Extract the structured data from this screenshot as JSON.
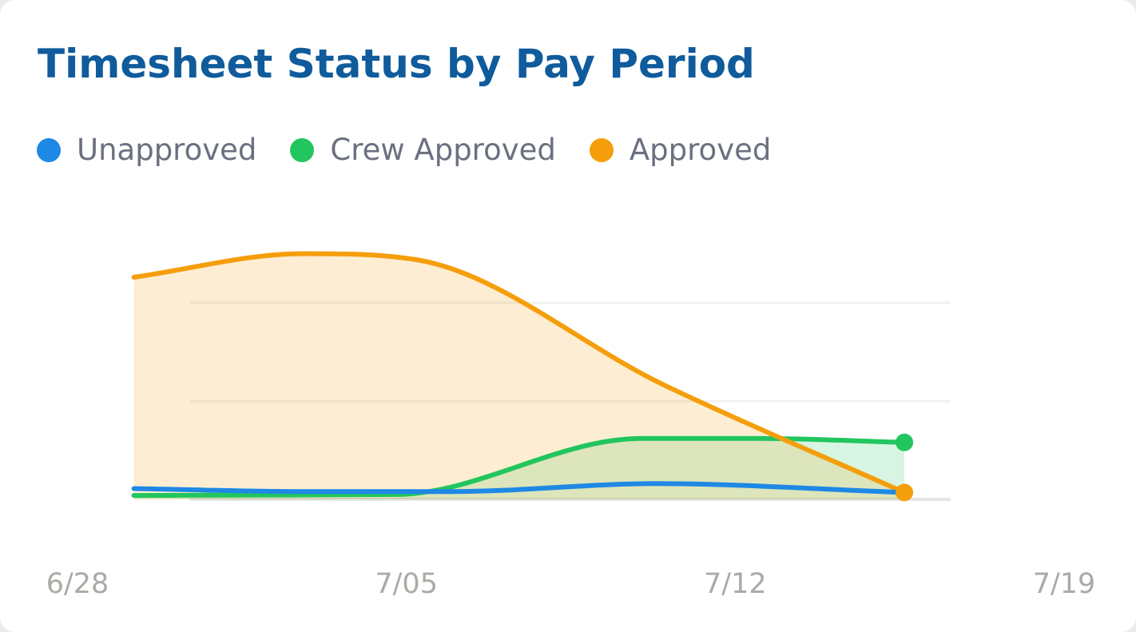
{
  "card": {
    "title": "Timesheet Status by Pay Period"
  },
  "chart_data": {
    "type": "area",
    "title": "Timesheet Status by Pay Period",
    "xlabel": "",
    "ylabel": "",
    "x_axis": {
      "type": "date",
      "range": [
        "6/28",
        "7/19"
      ],
      "ticks": [
        {
          "label": "6/28",
          "day": 0
        },
        {
          "label": "7/05",
          "day": 7
        },
        {
          "label": "7/12",
          "day": 14
        },
        {
          "label": "7/19",
          "day": 21
        }
      ]
    },
    "y_axis": {
      "range": [
        0,
        10
      ],
      "gridlines": [
        0,
        5,
        10
      ],
      "tick_labels_shown": false
    },
    "grid": true,
    "legend": "top-left",
    "series": [
      {
        "name": "Unapproved",
        "color": "#1e88e5",
        "fill": false,
        "points": [
          [
            1.2,
            0.55
          ],
          [
            4.8,
            0.4
          ],
          [
            8.0,
            0.4
          ],
          [
            12.3,
            0.8
          ],
          [
            17.6,
            0.35
          ]
        ]
      },
      {
        "name": "Crew Approved",
        "color": "#22c55e",
        "fill": true,
        "fill_color": "rgba(34,197,94,0.18)",
        "points": [
          [
            1.2,
            0.2
          ],
          [
            6.8,
            0.25
          ],
          [
            12.0,
            3.1
          ],
          [
            14.5,
            3.1
          ],
          [
            17.6,
            2.9
          ]
        ]
      },
      {
        "name": "Approved",
        "color": "#f59e0b",
        "fill": true,
        "fill_color": "rgba(245,158,11,0.18)",
        "points": [
          [
            1.2,
            11.3
          ],
          [
            4.8,
            12.5
          ],
          [
            7.2,
            12.2
          ],
          [
            12.5,
            5.8
          ],
          [
            17.6,
            0.35
          ]
        ]
      }
    ]
  }
}
